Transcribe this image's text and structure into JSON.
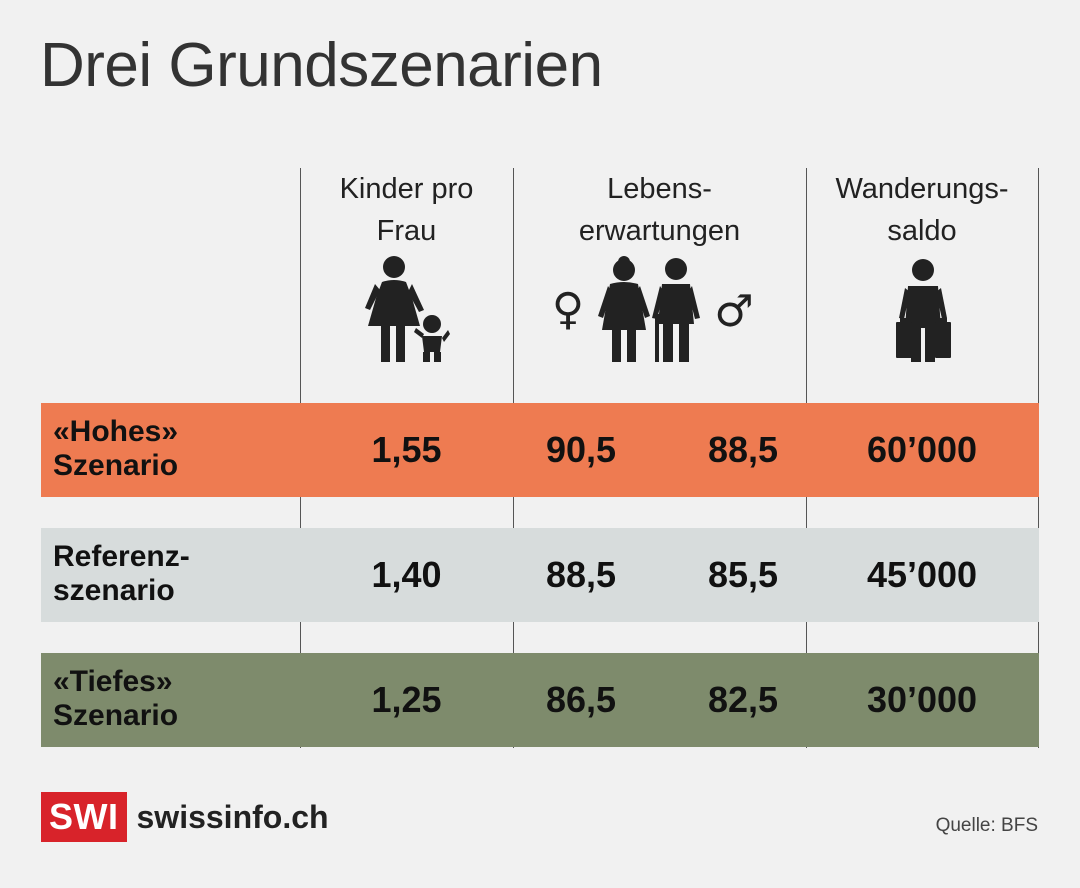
{
  "title": "Drei Grundszenarien",
  "columns": {
    "kinder": {
      "line1": "Kinder pro",
      "line2": "Frau",
      "icon": "mother-child-icon"
    },
    "leben": {
      "line1": "Lebens-",
      "line2": "erwartungen",
      "icon": "elderly-couple-icon",
      "female_symbol": "♀",
      "male_symbol": "♂"
    },
    "wanderung": {
      "line1": "Wanderungs-",
      "line2": "saldo",
      "icon": "traveler-suitcases-icon"
    }
  },
  "rows": [
    {
      "label1": "«Hohes»",
      "label2": "Szenario",
      "kinder": "1,55",
      "leben_f": "90,5",
      "leben_m": "88,5",
      "wanderung": "60’000",
      "color": "#ee7b51"
    },
    {
      "label1": "Referenz-",
      "label2": "szenario",
      "kinder": "1,40",
      "leben_f": "88,5",
      "leben_m": "85,5",
      "wanderung": "45’000",
      "color": "#d7dcdc"
    },
    {
      "label1": "«Tiefes»",
      "label2": "Szenario",
      "kinder": "1,25",
      "leben_f": "86,5",
      "leben_m": "82,5",
      "wanderung": "30’000",
      "color": "#7e8b6c"
    }
  ],
  "footer": {
    "logo": "SWI",
    "brand": "swissinfo.ch",
    "source": "Quelle: BFS"
  },
  "colors": {
    "logo_red": "#d8232a",
    "icon": "#222222"
  }
}
